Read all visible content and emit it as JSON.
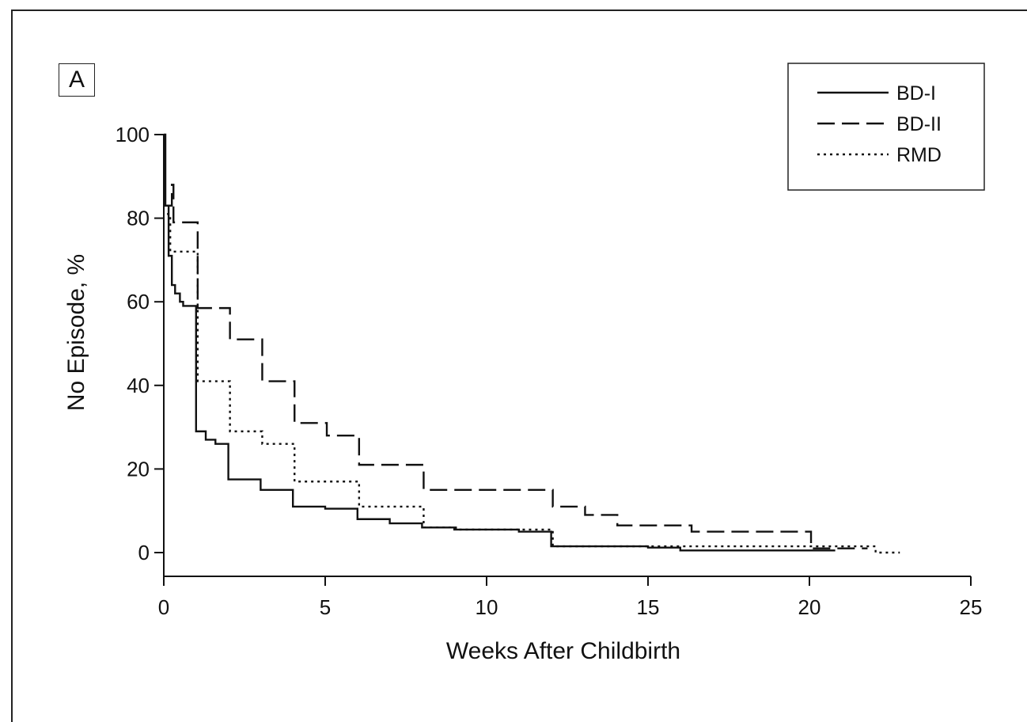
{
  "panel_label": "A",
  "chart_data": {
    "type": "line",
    "title": "",
    "xlabel": "Weeks After Childbirth",
    "ylabel": "No Episode, %",
    "xlim": [
      0,
      25
    ],
    "ylim": [
      0,
      100
    ],
    "x_ticks": [
      0,
      5,
      10,
      15,
      20,
      25
    ],
    "y_ticks": [
      0,
      20,
      40,
      60,
      80,
      100
    ],
    "grid": false,
    "legend_position": "top-right",
    "step": true,
    "series": [
      {
        "name": "BD-I",
        "style": "solid",
        "color": "#111111",
        "points": [
          [
            0,
            100
          ],
          [
            0.05,
            83
          ],
          [
            0.15,
            71
          ],
          [
            0.25,
            64
          ],
          [
            0.35,
            62
          ],
          [
            0.5,
            60
          ],
          [
            0.6,
            59
          ],
          [
            0.95,
            59
          ],
          [
            1.0,
            29
          ],
          [
            1.3,
            27
          ],
          [
            1.6,
            26
          ],
          [
            2.0,
            17.5
          ],
          [
            3.0,
            15
          ],
          [
            4.0,
            11
          ],
          [
            5.0,
            10.5
          ],
          [
            6.0,
            8
          ],
          [
            7.0,
            7
          ],
          [
            8.0,
            6
          ],
          [
            9.0,
            5.5
          ],
          [
            11.0,
            5
          ],
          [
            12.0,
            1.5
          ],
          [
            15.0,
            1.2
          ],
          [
            16.0,
            0.5
          ],
          [
            20.8,
            0.5
          ]
        ]
      },
      {
        "name": "BD-II",
        "style": "dashed",
        "color": "#111111",
        "points": [
          [
            0.1,
            83
          ],
          [
            0.25,
            88
          ],
          [
            0.3,
            79
          ],
          [
            1.0,
            79
          ],
          [
            1.05,
            58.5
          ],
          [
            2.0,
            58.5
          ],
          [
            2.05,
            51
          ],
          [
            3.0,
            51
          ],
          [
            3.05,
            41
          ],
          [
            4.0,
            41
          ],
          [
            4.05,
            31
          ],
          [
            5.0,
            31
          ],
          [
            5.05,
            28
          ],
          [
            6.0,
            28
          ],
          [
            6.05,
            21
          ],
          [
            8.0,
            21
          ],
          [
            8.05,
            15
          ],
          [
            12.0,
            15
          ],
          [
            12.05,
            11
          ],
          [
            13.0,
            11
          ],
          [
            13.05,
            9
          ],
          [
            14.0,
            9
          ],
          [
            14.05,
            6.5
          ],
          [
            16.3,
            6.5
          ],
          [
            16.35,
            5
          ],
          [
            20.0,
            5
          ],
          [
            20.05,
            1
          ],
          [
            21.8,
            1
          ]
        ]
      },
      {
        "name": "RMD",
        "style": "dotted",
        "color": "#111111",
        "points": [
          [
            0.1,
            81
          ],
          [
            0.2,
            72
          ],
          [
            1.0,
            72
          ],
          [
            1.05,
            41
          ],
          [
            2.0,
            41
          ],
          [
            2.05,
            29
          ],
          [
            3.0,
            29
          ],
          [
            3.05,
            26
          ],
          [
            4.0,
            26
          ],
          [
            4.05,
            17
          ],
          [
            6.0,
            17
          ],
          [
            6.05,
            11
          ],
          [
            8.0,
            11
          ],
          [
            8.05,
            6
          ],
          [
            9.0,
            6
          ],
          [
            9.05,
            5.5
          ],
          [
            12.0,
            5.5
          ],
          [
            12.05,
            1.5
          ],
          [
            22.0,
            1.5
          ],
          [
            22.05,
            0
          ],
          [
            22.8,
            0
          ]
        ]
      }
    ]
  }
}
